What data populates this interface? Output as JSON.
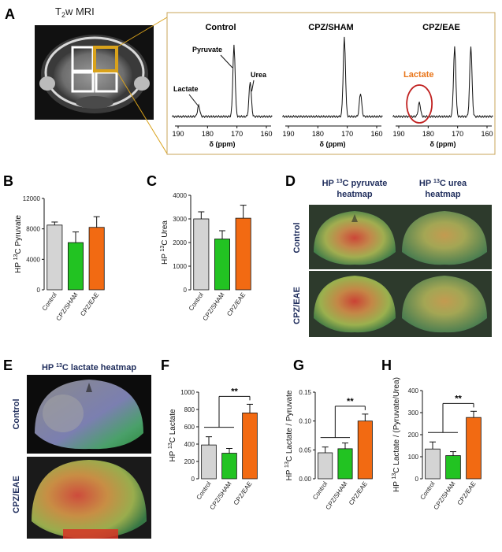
{
  "panel_letters": [
    "A",
    "B",
    "C",
    "D",
    "E",
    "F",
    "G",
    "H"
  ],
  "panel_a": {
    "mri_title": "T",
    "mri_title_sub": "2",
    "mri_title_rest": "w MRI",
    "spectra_titles": [
      "Control",
      "CPZ/SHAM",
      "CPZ/EAE"
    ],
    "peak_labels": {
      "pyruvate": "Pyruvate",
      "urea": "Urea",
      "lactate": "Lactate",
      "lactate_highlight": "Lactate"
    },
    "ppm_ticks": [
      "190",
      "180",
      "170",
      "160"
    ],
    "xlabel": "δ (ppm)",
    "colors": {
      "gold_roi": "#d9a21b",
      "lactate_highlight": "#e8751a",
      "circle": "#c0201f"
    }
  },
  "panel_d": {
    "col_titles": [
      [
        "HP ",
        "13",
        "C pyruvate",
        "heatmap"
      ],
      [
        "HP ",
        "13",
        "C urea",
        "heatmap"
      ]
    ],
    "row_labels": [
      "Control",
      "CPZ/EAE"
    ]
  },
  "panel_e": {
    "title": [
      "HP ",
      "13",
      "C lactate heatmap"
    ],
    "row_labels": [
      "Control",
      "CPZ/EAE"
    ]
  },
  "bar_axis_categories": [
    "Control",
    "CPZ/SHAM",
    "CPZ/EAE"
  ],
  "significance": "**",
  "chart_data": [
    {
      "panel": "B",
      "type": "bar",
      "categories": [
        "Control",
        "CPZ/SHAM",
        "CPZ/EAE"
      ],
      "values": [
        8500,
        6200,
        8200
      ],
      "errors": [
        400,
        1400,
        1400
      ],
      "ylabel": [
        "HP ",
        "13",
        "C Pyruvate"
      ],
      "ylim": [
        0,
        12000
      ],
      "yticks": [
        "0",
        "4000",
        "8000",
        "12000"
      ],
      "colors": [
        "#d4d4d4",
        "#22c322",
        "#f26a12"
      ]
    },
    {
      "panel": "C",
      "type": "bar",
      "categories": [
        "Control",
        "CPZ/SHAM",
        "CPZ/EAE"
      ],
      "values": [
        3000,
        2150,
        3030
      ],
      "errors": [
        300,
        350,
        550
      ],
      "ylabel": [
        "HP ",
        "13",
        "C Urea"
      ],
      "ylim": [
        0,
        4000
      ],
      "yticks": [
        "0",
        "1000",
        "2000",
        "3000",
        "4000"
      ],
      "colors": [
        "#d4d4d4",
        "#22c322",
        "#f26a12"
      ]
    },
    {
      "panel": "F",
      "type": "bar",
      "categories": [
        "Control",
        "CPZ/SHAM",
        "CPZ/EAE"
      ],
      "values": [
        390,
        295,
        760
      ],
      "errors": [
        95,
        55,
        100
      ],
      "ylabel": [
        "HP ",
        "13",
        "C Lactate"
      ],
      "ylim": [
        0,
        1000
      ],
      "yticks": [
        "0",
        "200",
        "400",
        "600",
        "800",
        "1000"
      ],
      "colors": [
        "#d4d4d4",
        "#22c322",
        "#f26a12"
      ],
      "significance": "**"
    },
    {
      "panel": "G",
      "type": "bar",
      "categories": [
        "Control",
        "CPZ/SHAM",
        "CPZ/EAE"
      ],
      "values": [
        0.045,
        0.052,
        0.1
      ],
      "errors": [
        0.01,
        0.01,
        0.012
      ],
      "ylabel": [
        "HP ",
        "13",
        "C Lactate / Pyruvate"
      ],
      "ylim": [
        0,
        0.15
      ],
      "yticks": [
        "0.00",
        "0.05",
        "0.10",
        "0.15"
      ],
      "colors": [
        "#d4d4d4",
        "#22c322",
        "#f26a12"
      ],
      "significance": "**"
    },
    {
      "panel": "H",
      "type": "bar",
      "categories": [
        "Control",
        "CPZ/SHAM",
        "CPZ/EAE"
      ],
      "values": [
        135,
        105,
        278
      ],
      "errors": [
        32,
        18,
        28
      ],
      "ylabel": [
        "HP ",
        "13",
        "C Lactate / (Pyruvate/Urea)"
      ],
      "ylim": [
        0,
        400
      ],
      "yticks": [
        "0",
        "100",
        "200",
        "300",
        "400"
      ],
      "colors": [
        "#d4d4d4",
        "#22c322",
        "#f26a12"
      ],
      "significance": "**"
    }
  ]
}
